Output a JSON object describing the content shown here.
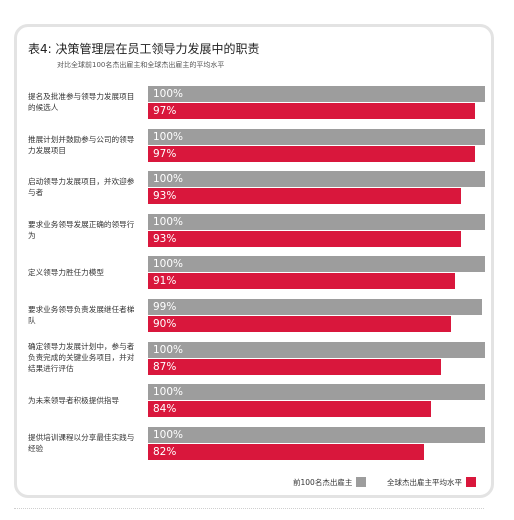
{
  "chart_data": {
    "type": "bar",
    "orientation": "horizontal",
    "title": "表4:  决策管理层在员工领导力发展中的职责",
    "subtitle": "对比全球前100名杰出雇主和全球杰出雇主的平均水平",
    "categories": [
      "提名及批准参与领导力发展项目的候选人",
      "推展计划并鼓励参与公司的领导力发展项目",
      "启动领导力发展项目，并欢迎参与者",
      "要求业务领导发展正确的领导行为",
      "定义领导力胜任力模型",
      "要求业务领导负责发展继任者梯队",
      "确定领导力发展计划中，参与者负责完成的关键业务项目，并对结果进行评估",
      "为未来领导者积极提供指导",
      "提供培训课程以分享最佳实践与经验"
    ],
    "series": [
      {
        "name": "前100名杰出雇主",
        "color": "#9d9d9d",
        "values": [
          100,
          100,
          100,
          100,
          100,
          99,
          100,
          100,
          100
        ],
        "labels": [
          "100%",
          "100%",
          "100%",
          "100%",
          "100%",
          "99%",
          "100%",
          "100%",
          "100%"
        ]
      },
      {
        "name": "全球杰出雇主平均水平",
        "color": "#d9173c",
        "values": [
          97,
          97,
          93,
          93,
          91,
          90,
          87,
          84,
          82
        ],
        "labels": [
          "97%",
          "97%",
          "93%",
          "93%",
          "91%",
          "90%",
          "87%",
          "84%",
          "82%"
        ]
      }
    ],
    "xlim": [
      0,
      100
    ],
    "grid": false,
    "legend": "bottom-right"
  }
}
